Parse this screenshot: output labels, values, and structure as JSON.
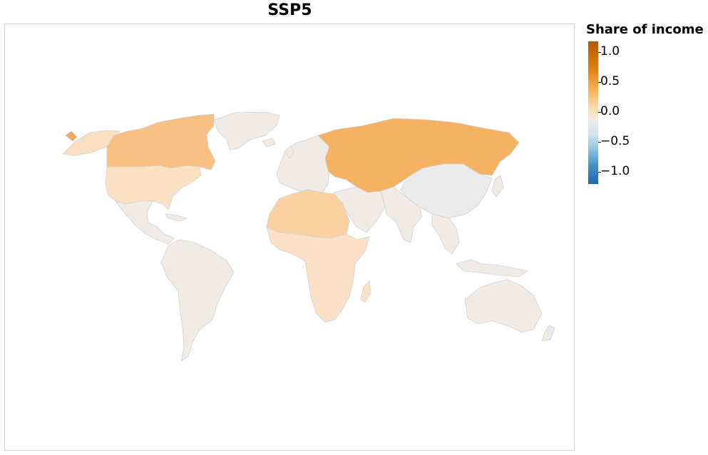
{
  "title": "SSP5",
  "legend": {
    "title": "Share of income",
    "ticks": [
      "1.0",
      "0.5",
      "0.0",
      "−0.5",
      "−1.0"
    ],
    "colors": {
      "high": "#b35806",
      "mid_high": "#f6b15e",
      "neutral": "#f0ede8",
      "low": "#2166ac"
    }
  },
  "map_data": {
    "type": "choropleth",
    "variable": "Share of income",
    "range": [
      -1.0,
      1.0
    ],
    "regions": [
      {
        "name": "Russia & Central Asia",
        "value": 0.6
      },
      {
        "name": "Canada",
        "value": 0.45
      },
      {
        "name": "Alaska",
        "value": 0.6
      },
      {
        "name": "North Africa",
        "value": 0.35
      },
      {
        "name": "Sub-Saharan Africa",
        "value": 0.2
      },
      {
        "name": "United States",
        "value": 0.2
      },
      {
        "name": "Greenland",
        "value": 0.05
      },
      {
        "name": "China",
        "value": 0.0
      },
      {
        "name": "Latin America",
        "value": 0.03
      },
      {
        "name": "Europe",
        "value": 0.03
      },
      {
        "name": "South Asia",
        "value": 0.03
      },
      {
        "name": "Australia",
        "value": 0.03
      }
    ]
  }
}
